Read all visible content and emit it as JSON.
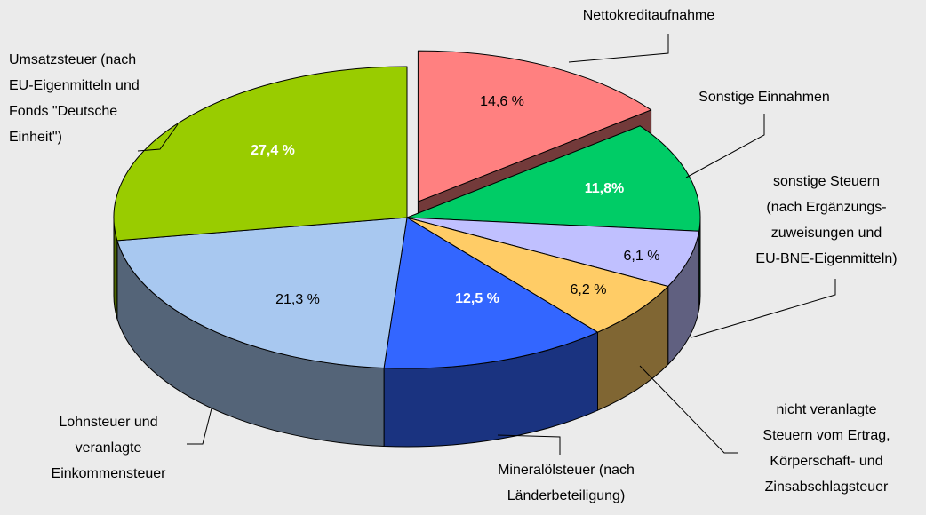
{
  "chart_data": {
    "type": "pie3d",
    "categories": [
      "Nettokreditaufnahme",
      "Sonstige Einnahmen",
      "sonstige Steuern\n(nach Ergänzungs-\nzuweisungen und\nEU-BNE-Eigenmitteln)",
      "nicht veranlagte\nSteuern vom Ertrag,\nKörperschaft- und\nZinsabschlagsteuer",
      "Mineralölsteuer (nach\nLänderbeteiligung)",
      "Lohnsteuer und\nveranlagte\nEinkommensteuer",
      "Umsatzsteuer (nach\nEU-Eigenmitteln und\nFonds \"Deutsche\nEinheit\")"
    ],
    "values": [
      14.6,
      11.8,
      6.1,
      6.2,
      12.5,
      21.3,
      27.4
    ],
    "value_labels": [
      "14,6 %",
      "11,8%",
      "6,1 %",
      "6,2 %",
      "12,5 %",
      "21,3 %",
      "27,4 %"
    ],
    "colors": [
      "#ff8080",
      "#00cc66",
      "#c0c0ff",
      "#ffcc66",
      "#3366ff",
      "#a8c8f0",
      "#99cc00"
    ],
    "value_label_colors": [
      "#000000",
      "#ffffff",
      "#000000",
      "#000000",
      "#ffffff",
      "#000000",
      "#ffffff"
    ],
    "exploded": [
      0
    ]
  }
}
